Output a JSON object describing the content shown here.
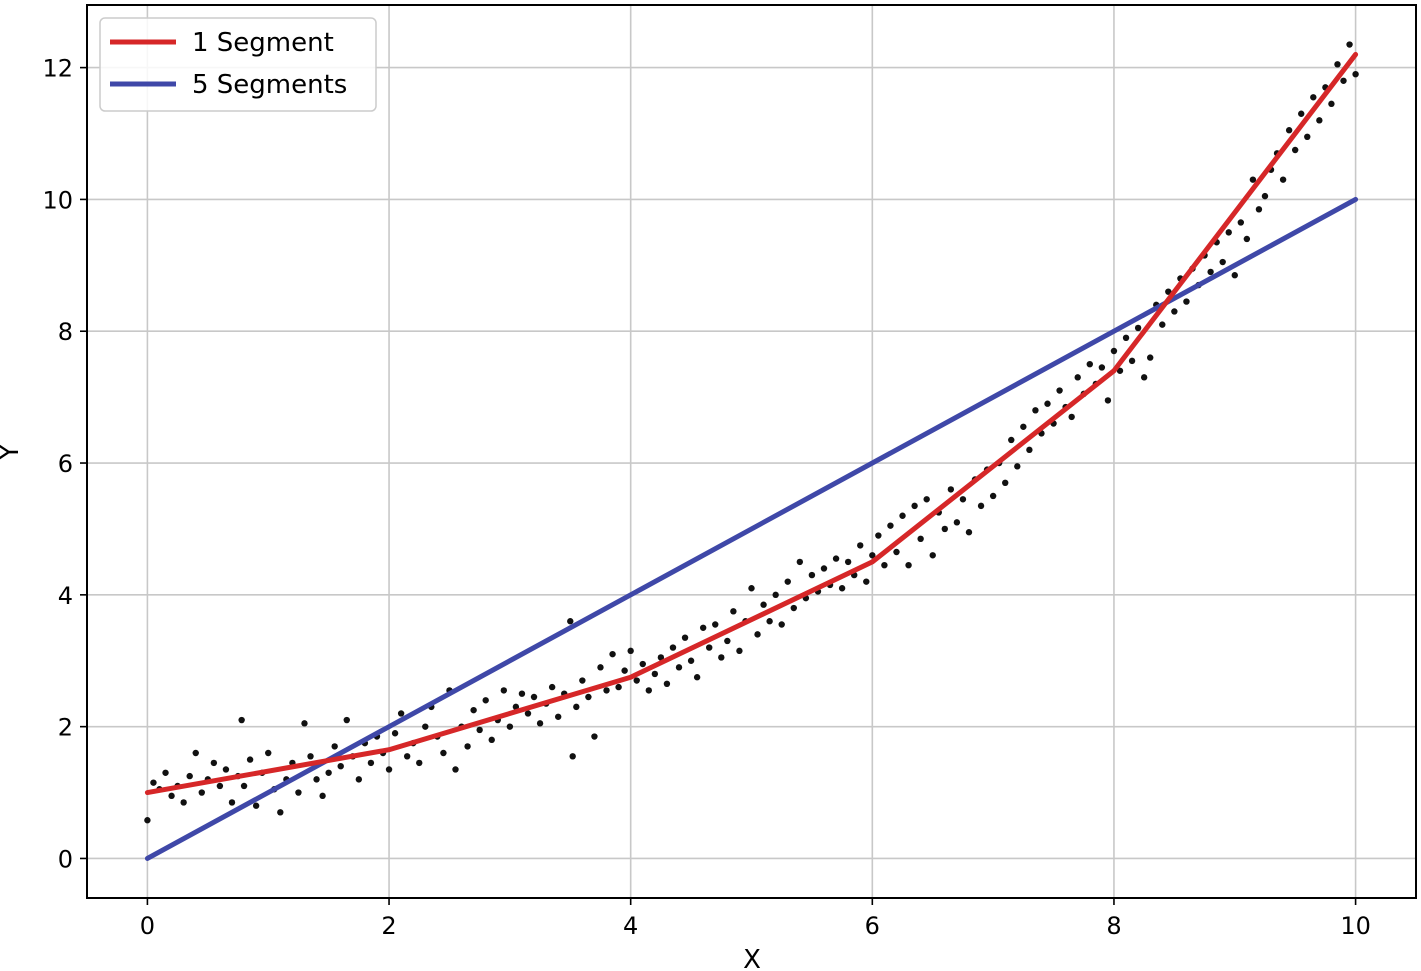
{
  "chart_data": {
    "type": "line",
    "title": "",
    "xlabel": "X",
    "ylabel": "Y",
    "xlim": [
      -0.5,
      10.5
    ],
    "ylim": [
      -0.6,
      12.95
    ],
    "xticks": [
      0,
      2,
      4,
      6,
      8,
      10
    ],
    "yticks": [
      0,
      2,
      4,
      6,
      8,
      10,
      12
    ],
    "xtick_labels": [
      "0",
      "2",
      "4",
      "6",
      "8",
      "10"
    ],
    "ytick_labels": [
      "0",
      "2",
      "4",
      "6",
      "8",
      "10",
      "12"
    ],
    "grid": true,
    "legend": {
      "placement": "top-left",
      "entries": [
        {
          "label": "1 Segment",
          "color": "#d62728"
        },
        {
          "label": "5 Segments",
          "color": "#3f48a8"
        }
      ]
    },
    "series": [
      {
        "name": "1 Segment",
        "color": "#d62728",
        "x": [
          0,
          2,
          4,
          6,
          8,
          10
        ],
        "y": [
          1.0,
          1.65,
          2.75,
          4.5,
          7.4,
          12.2
        ]
      },
      {
        "name": "5 Segments",
        "color": "#3f48a8",
        "x": [
          0,
          10
        ],
        "y": [
          0.0,
          10.0
        ]
      }
    ],
    "scatter": {
      "color": "#111111",
      "points": [
        [
          0.0,
          0.58
        ],
        [
          0.05,
          1.15
        ],
        [
          0.1,
          1.05
        ],
        [
          0.15,
          1.3
        ],
        [
          0.2,
          0.95
        ],
        [
          0.25,
          1.1
        ],
        [
          0.3,
          0.85
        ],
        [
          0.35,
          1.25
        ],
        [
          0.4,
          1.6
        ],
        [
          0.45,
          1.0
        ],
        [
          0.5,
          1.2
        ],
        [
          0.55,
          1.45
        ],
        [
          0.6,
          1.1
        ],
        [
          0.65,
          1.35
        ],
        [
          0.7,
          0.85
        ],
        [
          0.75,
          1.25
        ],
        [
          0.78,
          2.1
        ],
        [
          0.8,
          1.1
        ],
        [
          0.85,
          1.5
        ],
        [
          0.9,
          0.8
        ],
        [
          0.95,
          1.3
        ],
        [
          1.0,
          1.6
        ],
        [
          1.05,
          1.05
        ],
        [
          1.1,
          0.7
        ],
        [
          1.15,
          1.2
        ],
        [
          1.2,
          1.45
        ],
        [
          1.25,
          1.0
        ],
        [
          1.3,
          2.05
        ],
        [
          1.35,
          1.55
        ],
        [
          1.4,
          1.2
        ],
        [
          1.45,
          0.95
        ],
        [
          1.5,
          1.3
        ],
        [
          1.55,
          1.7
        ],
        [
          1.6,
          1.4
        ],
        [
          1.65,
          2.1
        ],
        [
          1.7,
          1.55
        ],
        [
          1.75,
          1.2
        ],
        [
          1.8,
          1.75
        ],
        [
          1.85,
          1.45
        ],
        [
          1.9,
          1.85
        ],
        [
          1.95,
          1.6
        ],
        [
          2.0,
          1.35
        ],
        [
          2.05,
          1.9
        ],
        [
          2.1,
          2.2
        ],
        [
          2.15,
          1.55
        ],
        [
          2.2,
          1.75
        ],
        [
          2.25,
          1.45
        ],
        [
          2.3,
          2.0
        ],
        [
          2.35,
          2.3
        ],
        [
          2.4,
          1.85
        ],
        [
          2.45,
          1.6
        ],
        [
          2.5,
          2.55
        ],
        [
          2.55,
          1.35
        ],
        [
          2.6,
          2.0
        ],
        [
          2.65,
          1.7
        ],
        [
          2.7,
          2.25
        ],
        [
          2.75,
          1.95
        ],
        [
          2.8,
          2.4
        ],
        [
          2.85,
          1.8
        ],
        [
          2.9,
          2.1
        ],
        [
          2.95,
          2.55
        ],
        [
          3.0,
          2.0
        ],
        [
          3.05,
          2.3
        ],
        [
          3.1,
          2.5
        ],
        [
          3.15,
          2.2
        ],
        [
          3.2,
          2.45
        ],
        [
          3.25,
          2.05
        ],
        [
          3.3,
          2.35
        ],
        [
          3.35,
          2.6
        ],
        [
          3.4,
          2.15
        ],
        [
          3.45,
          2.5
        ],
        [
          3.5,
          3.6
        ],
        [
          3.52,
          1.55
        ],
        [
          3.55,
          2.3
        ],
        [
          3.6,
          2.7
        ],
        [
          3.65,
          2.45
        ],
        [
          3.7,
          1.85
        ],
        [
          3.75,
          2.9
        ],
        [
          3.8,
          2.55
        ],
        [
          3.85,
          3.1
        ],
        [
          3.9,
          2.6
        ],
        [
          3.95,
          2.85
        ],
        [
          4.0,
          3.15
        ],
        [
          4.05,
          2.7
        ],
        [
          4.1,
          2.95
        ],
        [
          4.15,
          2.55
        ],
        [
          4.2,
          2.8
        ],
        [
          4.25,
          3.05
        ],
        [
          4.3,
          2.65
        ],
        [
          4.35,
          3.2
        ],
        [
          4.4,
          2.9
        ],
        [
          4.45,
          3.35
        ],
        [
          4.5,
          3.0
        ],
        [
          4.55,
          2.75
        ],
        [
          4.6,
          3.5
        ],
        [
          4.65,
          3.2
        ],
        [
          4.7,
          3.55
        ],
        [
          4.75,
          3.05
        ],
        [
          4.8,
          3.3
        ],
        [
          4.85,
          3.75
        ],
        [
          4.9,
          3.15
        ],
        [
          4.95,
          3.6
        ],
        [
          5.0,
          4.1
        ],
        [
          5.05,
          3.4
        ],
        [
          5.1,
          3.85
        ],
        [
          5.15,
          3.6
        ],
        [
          5.2,
          4.0
        ],
        [
          5.25,
          3.55
        ],
        [
          5.3,
          4.2
        ],
        [
          5.35,
          3.8
        ],
        [
          5.4,
          4.5
        ],
        [
          5.45,
          3.95
        ],
        [
          5.5,
          4.3
        ],
        [
          5.55,
          4.05
        ],
        [
          5.6,
          4.4
        ],
        [
          5.65,
          4.15
        ],
        [
          5.7,
          4.55
        ],
        [
          5.75,
          4.1
        ],
        [
          5.8,
          4.5
        ],
        [
          5.85,
          4.3
        ],
        [
          5.9,
          4.75
        ],
        [
          5.95,
          4.2
        ],
        [
          6.0,
          4.6
        ],
        [
          6.05,
          4.9
        ],
        [
          6.1,
          4.45
        ],
        [
          6.15,
          5.05
        ],
        [
          6.2,
          4.65
        ],
        [
          6.25,
          5.2
        ],
        [
          6.3,
          4.45
        ],
        [
          6.35,
          5.35
        ],
        [
          6.4,
          4.85
        ],
        [
          6.45,
          5.45
        ],
        [
          6.5,
          4.6
        ],
        [
          6.55,
          5.25
        ],
        [
          6.6,
          5.0
        ],
        [
          6.65,
          5.6
        ],
        [
          6.7,
          5.1
        ],
        [
          6.75,
          5.45
        ],
        [
          6.8,
          4.95
        ],
        [
          6.85,
          5.75
        ],
        [
          6.9,
          5.35
        ],
        [
          6.95,
          5.9
        ],
        [
          7.0,
          5.5
        ],
        [
          7.05,
          6.0
        ],
        [
          7.1,
          5.7
        ],
        [
          7.15,
          6.35
        ],
        [
          7.2,
          5.95
        ],
        [
          7.25,
          6.55
        ],
        [
          7.3,
          6.2
        ],
        [
          7.35,
          6.8
        ],
        [
          7.4,
          6.45
        ],
        [
          7.45,
          6.9
        ],
        [
          7.5,
          6.6
        ],
        [
          7.55,
          7.1
        ],
        [
          7.6,
          6.85
        ],
        [
          7.65,
          6.7
        ],
        [
          7.7,
          7.3
        ],
        [
          7.75,
          7.05
        ],
        [
          7.8,
          7.5
        ],
        [
          7.85,
          7.2
        ],
        [
          7.9,
          7.45
        ],
        [
          7.95,
          6.95
        ],
        [
          8.0,
          7.7
        ],
        [
          8.05,
          7.4
        ],
        [
          8.1,
          7.9
        ],
        [
          8.15,
          7.55
        ],
        [
          8.2,
          8.05
        ],
        [
          8.25,
          7.3
        ],
        [
          8.3,
          7.6
        ],
        [
          8.35,
          8.4
        ],
        [
          8.4,
          8.1
        ],
        [
          8.45,
          8.6
        ],
        [
          8.5,
          8.3
        ],
        [
          8.55,
          8.8
        ],
        [
          8.6,
          8.45
        ],
        [
          8.65,
          8.95
        ],
        [
          8.7,
          8.7
        ],
        [
          8.75,
          9.15
        ],
        [
          8.8,
          8.9
        ],
        [
          8.85,
          9.35
        ],
        [
          8.9,
          9.05
        ],
        [
          8.95,
          9.5
        ],
        [
          9.0,
          8.85
        ],
        [
          9.05,
          9.65
        ],
        [
          9.1,
          9.4
        ],
        [
          9.15,
          10.3
        ],
        [
          9.2,
          9.85
        ],
        [
          9.25,
          10.05
        ],
        [
          9.3,
          10.45
        ],
        [
          9.35,
          10.7
        ],
        [
          9.4,
          10.3
        ],
        [
          9.45,
          11.05
        ],
        [
          9.5,
          10.75
        ],
        [
          9.55,
          11.3
        ],
        [
          9.6,
          10.95
        ],
        [
          9.65,
          11.55
        ],
        [
          9.7,
          11.2
        ],
        [
          9.75,
          11.7
        ],
        [
          9.8,
          11.45
        ],
        [
          9.85,
          12.05
        ],
        [
          9.9,
          11.8
        ],
        [
          9.95,
          12.35
        ],
        [
          10.0,
          11.9
        ]
      ]
    }
  }
}
